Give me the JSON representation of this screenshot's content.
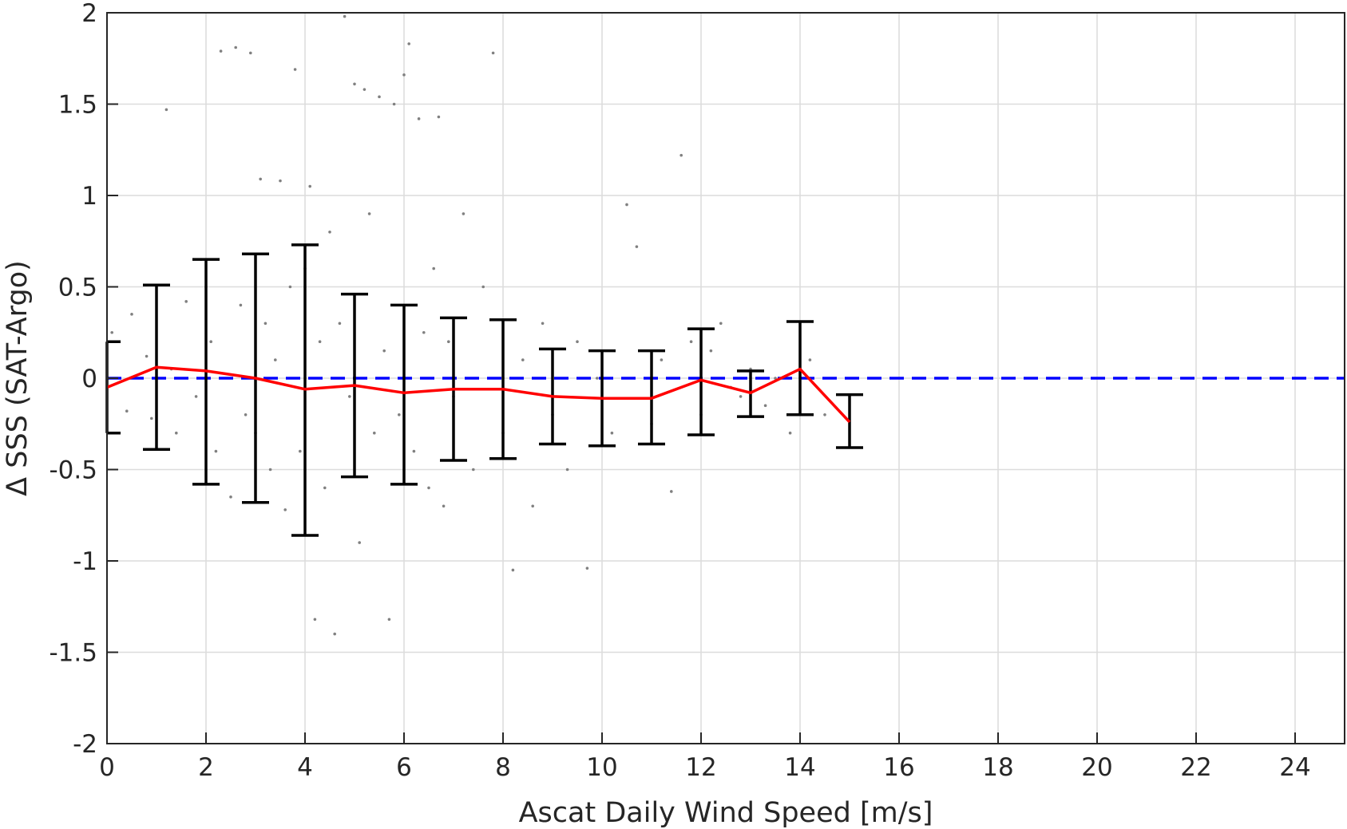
{
  "chart_data": {
    "type": "scatter",
    "xlabel": "Ascat Daily Wind Speed [m/s]",
    "ylabel": "Δ SSS (SAT-Argo)",
    "xlim": [
      0,
      25
    ],
    "ylim": [
      -2,
      2
    ],
    "xticks": [
      0,
      2,
      4,
      6,
      8,
      10,
      12,
      14,
      16,
      18,
      20,
      22,
      24
    ],
    "yticks": [
      2,
      1.5,
      1,
      0.5,
      0,
      -0.5,
      -1,
      -1.5,
      -2
    ],
    "xtick_labels": [
      "0",
      "2",
      "4",
      "6",
      "8",
      "10",
      "12",
      "14",
      "16",
      "18",
      "20",
      "22",
      "24"
    ],
    "ytick_labels": [
      "2",
      "1.5",
      "1",
      "0.5",
      "0",
      "-0.5",
      "-1",
      "-1.5",
      "-2"
    ],
    "grid": true,
    "reference_line": {
      "y": 0,
      "color": "#0000ff",
      "style": "dashed"
    },
    "mean_line": {
      "color": "#ff0000",
      "x": [
        0,
        1,
        2,
        3,
        4,
        5,
        6,
        7,
        8,
        9,
        10,
        11,
        12,
        13,
        14,
        15
      ],
      "y": [
        -0.05,
        0.06,
        0.04,
        0.0,
        -0.06,
        -0.04,
        -0.08,
        -0.06,
        -0.06,
        -0.1,
        -0.11,
        -0.11,
        -0.01,
        -0.08,
        0.05,
        -0.24
      ]
    },
    "error_bars": {
      "color": "#000000",
      "x": [
        0,
        1,
        2,
        3,
        4,
        5,
        6,
        7,
        8,
        9,
        10,
        11,
        12,
        13,
        14,
        15
      ],
      "upper": [
        0.2,
        0.51,
        0.65,
        0.68,
        0.73,
        0.46,
        0.4,
        0.33,
        0.32,
        0.16,
        0.15,
        0.15,
        0.27,
        0.04,
        0.31,
        -0.09
      ],
      "lower": [
        -0.3,
        -0.39,
        -0.58,
        -0.68,
        -0.86,
        -0.54,
        -0.58,
        -0.45,
        -0.44,
        -0.36,
        -0.37,
        -0.36,
        -0.31,
        -0.21,
        -0.2,
        -0.38
      ]
    },
    "scatter_color": "#808080",
    "scatter_points": [
      [
        0.1,
        0.25
      ],
      [
        0.4,
        -0.18
      ],
      [
        0.5,
        0.35
      ],
      [
        0.8,
        0.12
      ],
      [
        0.9,
        -0.22
      ],
      [
        1.2,
        1.47
      ],
      [
        1.3,
        0.05
      ],
      [
        1.4,
        -0.3
      ],
      [
        1.6,
        0.42
      ],
      [
        1.8,
        -0.1
      ],
      [
        1.9,
        0.65
      ],
      [
        2.1,
        0.2
      ],
      [
        2.2,
        -0.4
      ],
      [
        2.3,
        1.79
      ],
      [
        2.5,
        -0.65
      ],
      [
        2.6,
        1.81
      ],
      [
        2.7,
        0.4
      ],
      [
        2.8,
        -0.2
      ],
      [
        2.9,
        1.78
      ],
      [
        3.0,
        -0.3
      ],
      [
        3.1,
        1.09
      ],
      [
        3.2,
        0.3
      ],
      [
        3.3,
        -0.5
      ],
      [
        3.4,
        0.1
      ],
      [
        3.5,
        1.08
      ],
      [
        3.6,
        -0.72
      ],
      [
        3.7,
        0.5
      ],
      [
        3.8,
        1.69
      ],
      [
        3.9,
        -0.4
      ],
      [
        4.0,
        0.6
      ],
      [
        4.1,
        1.05
      ],
      [
        4.2,
        -1.32
      ],
      [
        4.3,
        0.2
      ],
      [
        4.4,
        -0.6
      ],
      [
        4.5,
        0.8
      ],
      [
        4.6,
        -1.4
      ],
      [
        4.7,
        0.3
      ],
      [
        4.8,
        1.98
      ],
      [
        4.9,
        -0.1
      ],
      [
        5.0,
        1.61
      ],
      [
        5.1,
        -0.9
      ],
      [
        5.2,
        1.58
      ],
      [
        5.3,
        0.9
      ],
      [
        5.4,
        -0.3
      ],
      [
        5.5,
        1.54
      ],
      [
        5.6,
        0.15
      ],
      [
        5.7,
        -1.32
      ],
      [
        5.8,
        1.5
      ],
      [
        5.9,
        -0.2
      ],
      [
        6.0,
        1.66
      ],
      [
        6.1,
        1.83
      ],
      [
        6.2,
        -0.4
      ],
      [
        6.3,
        1.42
      ],
      [
        6.4,
        0.25
      ],
      [
        6.5,
        -0.6
      ],
      [
        6.6,
        0.6
      ],
      [
        6.7,
        1.43
      ],
      [
        6.8,
        -0.7
      ],
      [
        6.9,
        0.2
      ],
      [
        7.0,
        -0.1
      ],
      [
        7.2,
        0.9
      ],
      [
        7.4,
        -0.5
      ],
      [
        7.6,
        0.5
      ],
      [
        7.8,
        1.78
      ],
      [
        8.0,
        -0.3
      ],
      [
        8.2,
        -1.05
      ],
      [
        8.4,
        0.1
      ],
      [
        8.6,
        -0.7
      ],
      [
        8.8,
        0.3
      ],
      [
        9.0,
        -0.2
      ],
      [
        9.3,
        -0.5
      ],
      [
        9.5,
        0.2
      ],
      [
        9.7,
        -1.04
      ],
      [
        9.9,
        0.0
      ],
      [
        10.2,
        -0.3
      ],
      [
        10.5,
        0.95
      ],
      [
        10.7,
        0.72
      ],
      [
        11.0,
        -0.25
      ],
      [
        11.2,
        0.1
      ],
      [
        11.4,
        -0.62
      ],
      [
        11.6,
        1.22
      ],
      [
        11.8,
        0.2
      ],
      [
        12.0,
        -0.2
      ],
      [
        12.2,
        0.15
      ],
      [
        12.4,
        0.3
      ],
      [
        12.6,
        -0.05
      ],
      [
        12.8,
        -0.1
      ],
      [
        13.0,
        0.05
      ],
      [
        13.3,
        -0.15
      ],
      [
        13.5,
        0.0
      ],
      [
        13.8,
        -0.3
      ],
      [
        14.2,
        0.1
      ],
      [
        14.5,
        -0.2
      ]
    ]
  }
}
